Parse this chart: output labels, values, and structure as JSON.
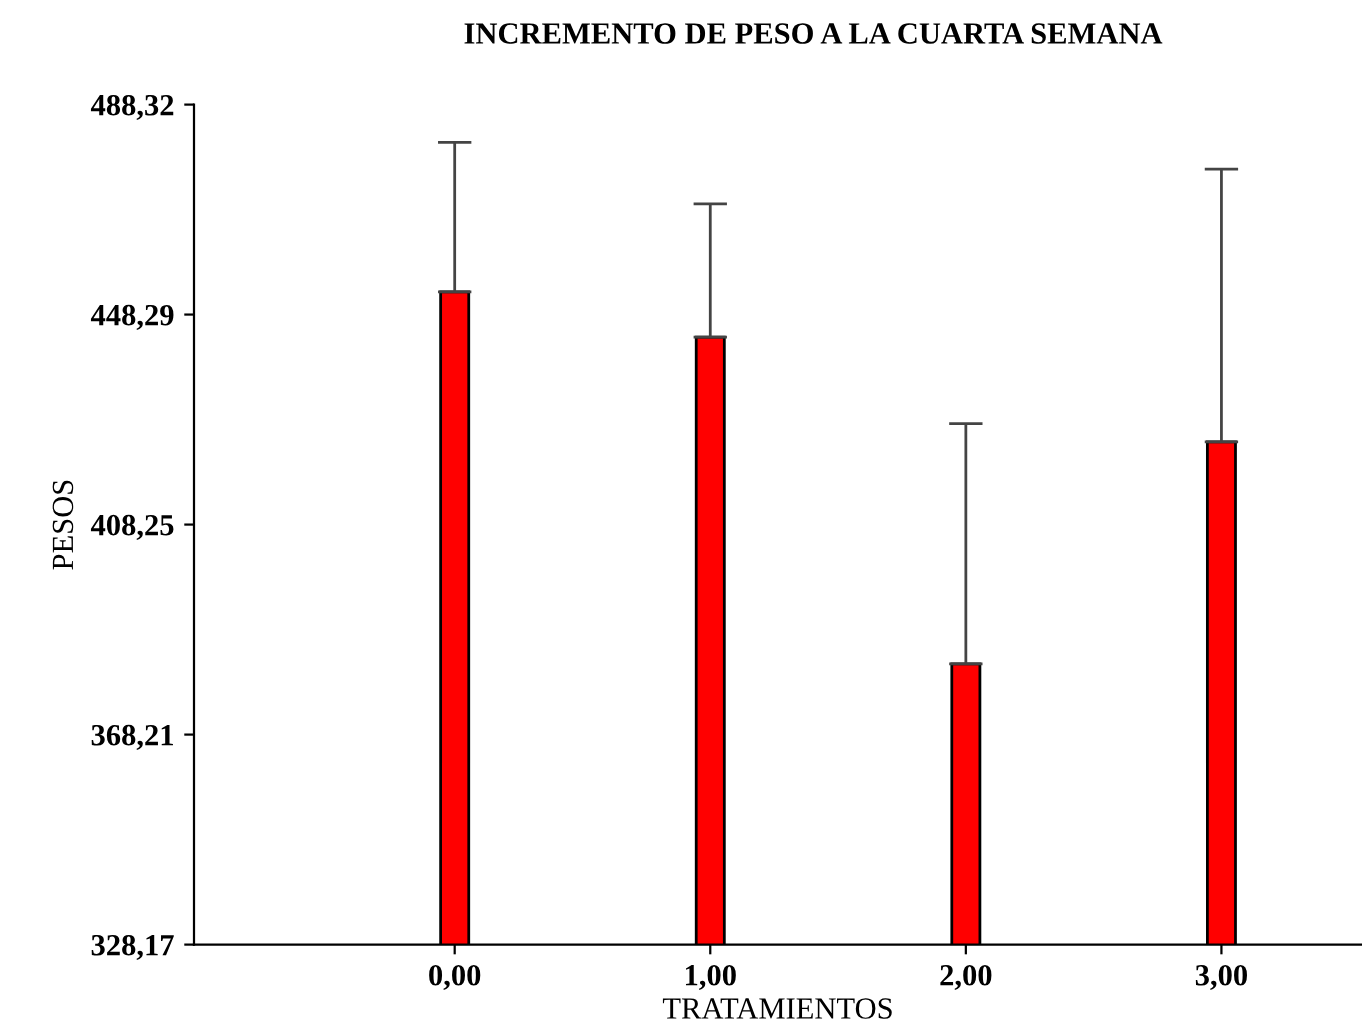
{
  "chart_data": {
    "type": "bar",
    "title": "INCREMENTO DE PESO A LA CUARTA SEMANA",
    "xlabel": "TRATAMIENTOS",
    "ylabel": "PESOS",
    "categories": [
      "0,00",
      "1,00",
      "2,00",
      "3,00"
    ],
    "values": [
      452.6,
      444.0,
      381.7,
      424.0
    ],
    "errors": [
      [
        452.6,
        481.1
      ],
      [
        444.0,
        469.4
      ],
      [
        381.7,
        427.5
      ],
      [
        424.0,
        476.0
      ]
    ],
    "color": "#ff0000",
    "ylim": [
      328.17,
      488.32
    ],
    "yticks": [
      {
        "value": 328.17,
        "label": "328,17"
      },
      {
        "value": 368.21,
        "label": "368,21"
      },
      {
        "value": 408.25,
        "label": "408,25"
      },
      {
        "value": 448.29,
        "label": "448,29"
      },
      {
        "value": 488.32,
        "label": "488,32"
      }
    ],
    "grid": false
  }
}
